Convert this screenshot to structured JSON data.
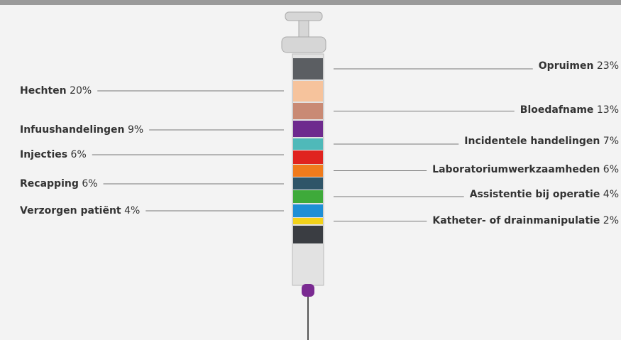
{
  "chart_data": {
    "type": "syringe",
    "items": [
      {
        "name": "Opruimen",
        "value": 23,
        "value_label": "23%",
        "color": "#5b5e62",
        "side": "right"
      },
      {
        "name": "Hechten",
        "value": 20,
        "value_label": "20%",
        "color": "#f6c39c",
        "side": "left"
      },
      {
        "name": "Bloedafname",
        "value": 13,
        "value_label": "13%",
        "color": "#c98a74",
        "side": "right"
      },
      {
        "name": "Infuushandelingen",
        "value": 9,
        "value_label": "9%",
        "color": "#6e2a8e",
        "side": "left"
      },
      {
        "name": "Incidentele handelingen",
        "value": 7,
        "value_label": "7%",
        "color": "#4fb9b9",
        "side": "right"
      },
      {
        "name": "Injecties",
        "value": 6,
        "value_label": "6%",
        "color": "#e0231f",
        "side": "left"
      },
      {
        "name": "Laboratoriumwerkzaamheden",
        "value": 6,
        "value_label": "6%",
        "color": "#f07b1c",
        "side": "right"
      },
      {
        "name": "Recapping",
        "value": 6,
        "value_label": "6%",
        "color": "#2f5568",
        "side": "left"
      },
      {
        "name": "Assistentie bij operatie",
        "value": 4,
        "value_label": "4%",
        "color": "#3eaa3a",
        "side": "right"
      },
      {
        "name": "Verzorgen patiënt",
        "value": 4,
        "value_label": "4%",
        "color": "#1e8fd6",
        "side": "left"
      },
      {
        "name": "Katheter- of drainmanipulatie",
        "value": 2,
        "value_label": "2%",
        "color": "#f2d21a",
        "side": "right"
      }
    ]
  }
}
